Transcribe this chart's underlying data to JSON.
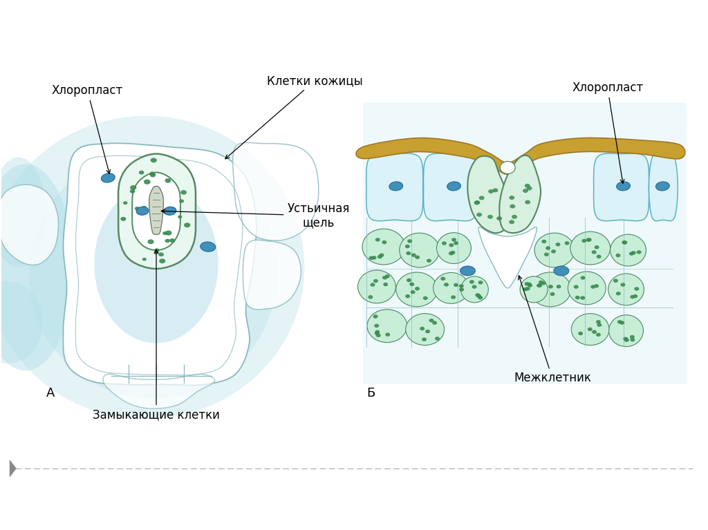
{
  "bg_color": "#ffffff",
  "label_A": "А",
  "label_B": "Б",
  "text_хлоропласт_left": "Хлоропласт",
  "text_клетки_кожицы": "Клетки кожицы",
  "text_устьичная_щель": "Устьичная\nщель",
  "text_замыкающие_клетки": "Замыкающие клетки",
  "text_хлоропласт_right": "Хлоропласт",
  "text_межклетник": "Межклетник",
  "cell_blue_light": "#c8eaf0",
  "cell_blue_mid": "#90ccd8",
  "cell_outline": "#7ab8c8",
  "guard_green_light": "#e8f8f0",
  "guard_green_fill": "#d0eedd",
  "guard_green_dots": "#3a8a50",
  "guard_outline": "#558860",
  "stoma_slit_color": "#b0c8b8",
  "blue_chloroplast": "#4090b8",
  "blue_chloroplast_dark": "#2060a0",
  "yellow_cuticle": "#c8a030",
  "yellow_outline": "#a07820",
  "bg_blue_glow": "#b0dde8",
  "font_size_label": 13,
  "font_size_annot": 12
}
